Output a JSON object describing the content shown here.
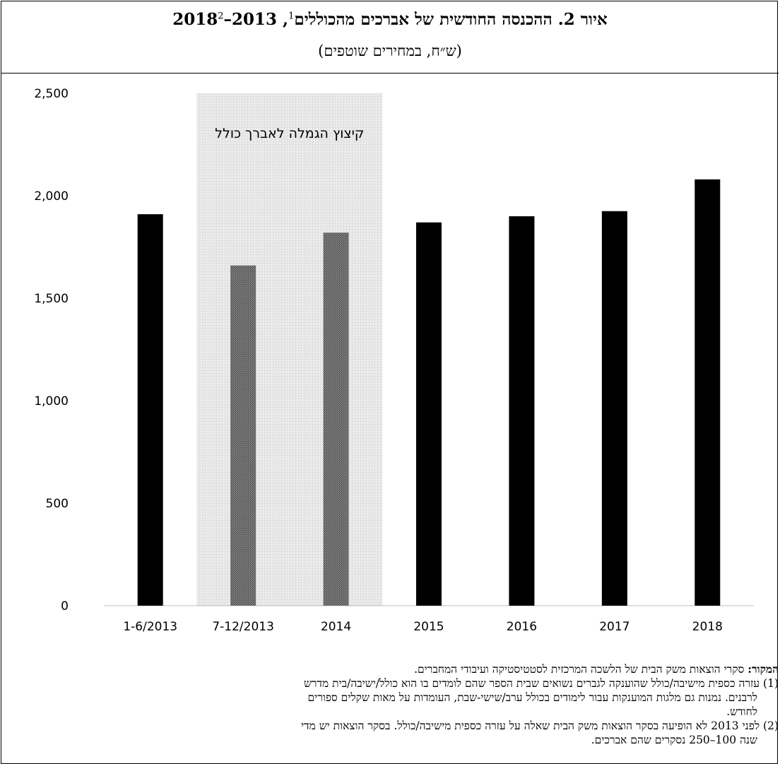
{
  "title": {
    "main": "איור 2. ההכנסה החודשית של אברכים מהכוללים",
    "sup1": "1",
    "years": ", 2013–2018",
    "sup2": "2",
    "subtitle": "(ש״ח, במחירים שוטפים)"
  },
  "chart_data": {
    "type": "bar",
    "categories": [
      "1-6/2013",
      "7-12/2013",
      "2014",
      "2015",
      "2016",
      "2017",
      "2018"
    ],
    "values": [
      1910,
      1660,
      1820,
      1870,
      1900,
      1925,
      2080
    ],
    "ylim": [
      0,
      2500
    ],
    "yticks": [
      0,
      500,
      1000,
      1500,
      2000,
      2500
    ],
    "ytick_labels": [
      "0",
      "500",
      "1,000",
      "1,500",
      "2,000",
      "2,500"
    ],
    "shaded_categories": [
      "7-12/2013",
      "2014"
    ],
    "shaded_region_label": "קיצוץ הגמלה לאברך כולל",
    "grid": false,
    "colors": {
      "bar": "#000000",
      "bar_hatched": "#555555",
      "shade": "#e6e6e6",
      "axis": "#bfbfbf"
    }
  },
  "notes": {
    "source_label": "המקור:",
    "source_text": " סקרי הוצאות משק הבית של הלשכה המרכזית לסטטיסטיקה ועיבודי המחברים.",
    "note1_line1": "(1) עזרה כספית מישיבה/כולל שהוענקה לגברים נשואים שבית הספר שהם לומדים בו הוא כולל/ישיבה/בית מדרש",
    "note1_line2": "לרבנים. נמנות גם מלגות המוענקות עבור לימודים בכולל ערב/שישי-שבת, העומדות על מאות שקלים ספורים",
    "note1_line3": "לחודש.",
    "note2_line1": "(2) לפני 2013 לא הופיעה בסקר הוצאות משק הבית שאלה על עזרה כספית מישיבה/כולל. בסקר הוצאות יש מדי",
    "note2_line2": "שנה 100–250 נסקרים שהם אברכים."
  }
}
